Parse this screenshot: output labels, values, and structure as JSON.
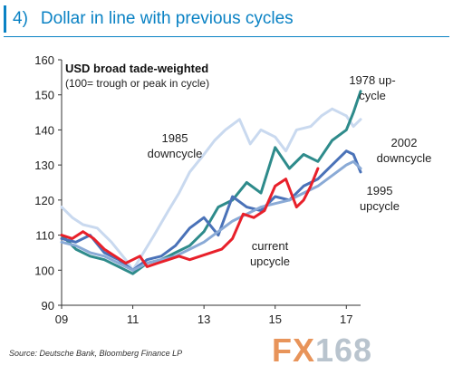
{
  "header": {
    "number": "4)",
    "title": "Dollar in line with previous cycles"
  },
  "source": "Source: Deutsche Bank, Bloomberg Finance LP",
  "watermark": {
    "part1": "FX",
    "part2": "168"
  },
  "chart_data": {
    "type": "line",
    "title": "USD broad  tade-weighted",
    "subtitle": "(100= trough or peak in cycle)",
    "xlabel": "",
    "ylabel": "",
    "xlim": [
      9,
      17.4
    ],
    "ylim": [
      90,
      160
    ],
    "x_ticks": [
      9,
      11,
      13,
      15,
      17
    ],
    "x_tick_labels": [
      "09",
      "11",
      "13",
      "15",
      "17"
    ],
    "y_ticks": [
      90,
      100,
      110,
      120,
      130,
      140,
      150,
      160
    ],
    "grid": false,
    "annotations": [
      {
        "text": "1978 up-\ncycle",
        "series": "1978 up-cycle"
      },
      {
        "text": "1985\ndowncycle",
        "series": "1985 downcycle"
      },
      {
        "text": "2002\ndowncycle",
        "series": "2002 downcycle"
      },
      {
        "text": "1995\nupcycle",
        "series": "1995 upcycle"
      },
      {
        "text": "current\nupcycle",
        "series": "current upcycle"
      }
    ],
    "series": [
      {
        "name": "1985 downcycle",
        "color": "#c9d9ef",
        "x": [
          9.0,
          9.3,
          9.6,
          10.0,
          10.4,
          10.8,
          11.0,
          11.3,
          11.6,
          12.0,
          12.3,
          12.6,
          13.0,
          13.3,
          13.6,
          14.0,
          14.3,
          14.6,
          15.0,
          15.3,
          15.6,
          16.0,
          16.3,
          16.6,
          17.0,
          17.2,
          17.4
        ],
        "y": [
          118,
          115,
          113,
          112,
          108,
          103,
          100,
          105,
          110,
          117,
          122,
          128,
          133,
          137,
          140,
          143,
          136,
          140,
          138,
          134,
          140,
          141,
          144,
          146,
          144,
          141,
          143
        ]
      },
      {
        "name": "1978 up-cycle",
        "color": "#2e8b8b",
        "x": [
          9.0,
          9.4,
          9.8,
          10.2,
          10.6,
          11.0,
          11.4,
          11.8,
          12.2,
          12.6,
          13.0,
          13.4,
          13.8,
          14.2,
          14.6,
          15.0,
          15.4,
          15.8,
          16.2,
          16.6,
          17.0,
          17.2,
          17.4
        ],
        "y": [
          110,
          106,
          104,
          103,
          101,
          99,
          102,
          103,
          105,
          107,
          111,
          118,
          120,
          125,
          122,
          135,
          129,
          133,
          131,
          137,
          140,
          145,
          151
        ]
      },
      {
        "name": "2002 downcycle",
        "color": "#4a72b8",
        "x": [
          9.0,
          9.4,
          9.8,
          10.2,
          10.6,
          11.0,
          11.4,
          11.8,
          12.2,
          12.6,
          13.0,
          13.4,
          13.8,
          14.2,
          14.6,
          15.0,
          15.4,
          15.8,
          16.2,
          16.6,
          17.0,
          17.2,
          17.4
        ],
        "y": [
          109,
          108,
          110,
          105,
          103,
          100,
          103,
          104,
          107,
          112,
          115,
          110,
          121,
          118,
          117,
          121,
          120,
          124,
          126,
          130,
          134,
          133,
          128
        ]
      },
      {
        "name": "1995 upcycle",
        "color": "#8aaad6",
        "x": [
          9.0,
          9.4,
          9.8,
          10.2,
          10.6,
          11.0,
          11.4,
          11.8,
          12.2,
          12.6,
          13.0,
          13.4,
          13.8,
          14.2,
          14.6,
          15.0,
          15.4,
          15.8,
          16.2,
          16.6,
          17.0,
          17.2,
          17.4
        ],
        "y": [
          108,
          107,
          105,
          104,
          102,
          100,
          102,
          103,
          104,
          106,
          108,
          111,
          114,
          116,
          118,
          119,
          120,
          122,
          124,
          127,
          130,
          131,
          129
        ]
      },
      {
        "name": "current upcycle",
        "color": "#e8202a",
        "x": [
          9.0,
          9.3,
          9.6,
          9.9,
          10.2,
          10.5,
          10.8,
          11.0,
          11.2,
          11.4,
          11.7,
          12.0,
          12.3,
          12.6,
          12.9,
          13.2,
          13.5,
          13.8,
          14.1,
          14.4,
          14.7,
          15.0,
          15.3,
          15.6,
          15.8,
          16.0,
          16.2
        ],
        "y": [
          110,
          109,
          111,
          109,
          106,
          104,
          102,
          103,
          104,
          101,
          102,
          103,
          104,
          103,
          104,
          105,
          106,
          109,
          116,
          115,
          117,
          124,
          126,
          118,
          120,
          124,
          129
        ]
      }
    ]
  }
}
